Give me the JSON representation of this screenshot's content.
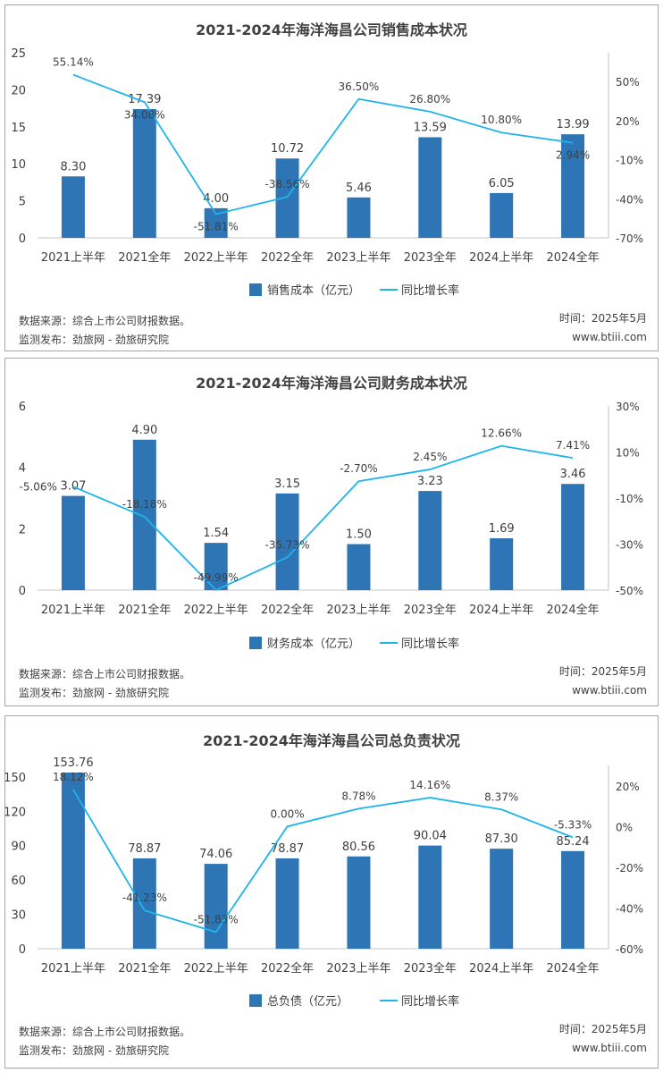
{
  "chart_data": [
    {
      "type": "bar+line",
      "title": "2021-2024年海洋海昌公司销售成本状况",
      "categories": [
        "2021上半年",
        "2021全年",
        "2022上半年",
        "2022全年",
        "2023上半年",
        "2023全年",
        "2024上半年",
        "2024全年"
      ],
      "series": [
        {
          "name": "销售成本（亿元）",
          "type": "bar",
          "axis": "left",
          "values": [
            8.3,
            17.39,
            4.0,
            10.72,
            5.46,
            13.59,
            6.05,
            13.99
          ],
          "labels": [
            "8.30",
            "17.39",
            "4.00",
            "10.72",
            "5.46",
            "13.59",
            "6.05",
            "13.99"
          ]
        },
        {
          "name": "同比增长率",
          "type": "line",
          "axis": "right",
          "values": [
            55.14,
            34.08,
            -51.81,
            -38.56,
            36.5,
            26.8,
            10.8,
            2.94
          ],
          "labels": [
            "55.14%",
            "34.08%",
            "-51.81%",
            "-38.56%",
            "36.50%",
            "26.80%",
            "10.80%",
            "2.94%"
          ]
        }
      ],
      "ylim": [
        0,
        25
      ],
      "yticks": [
        "0",
        "5",
        "10",
        "15",
        "20",
        "25"
      ],
      "ytick_values": [
        0,
        5,
        10,
        15,
        20,
        25
      ],
      "y2lim": [
        -70,
        72
      ],
      "y2ticks": [
        "-70%",
        "-40%",
        "-10%",
        "20%",
        "50%"
      ],
      "y2tick_values": [
        -70,
        -40,
        -10,
        20,
        50
      ],
      "grid": false,
      "legend": "bottom",
      "source": "数据来源：综合上市公司财报数据。",
      "publisher": "监测发布：劲旅网 - 劲旅研究院",
      "date": "时间：2025年5月",
      "site": "www.btiii.com"
    },
    {
      "type": "bar+line",
      "title": "2021-2024年海洋海昌公司财务成本状况",
      "categories": [
        "2021上半年",
        "2021全年",
        "2022上半年",
        "2022全年",
        "2023上半年",
        "2023全年",
        "2024上半年",
        "2024全年"
      ],
      "series": [
        {
          "name": "财务成本（亿元）",
          "type": "bar",
          "axis": "left",
          "values": [
            3.07,
            4.9,
            1.54,
            3.15,
            1.5,
            3.23,
            1.69,
            3.46
          ],
          "labels": [
            "3.07",
            "4.90",
            "1.54",
            "3.15",
            "1.50",
            "3.23",
            "1.69",
            "3.46"
          ]
        },
        {
          "name": "同比增长率",
          "type": "line",
          "axis": "right",
          "values": [
            -5.06,
            -18.18,
            -49.99,
            -35.73,
            -2.7,
            2.45,
            12.66,
            7.41
          ],
          "labels": [
            "-5.06%",
            "-18.18%",
            "-49.99%",
            "-35.73%",
            "-2.70%",
            "2.45%",
            "12.66%",
            "7.41%"
          ]
        }
      ],
      "ylim": [
        0,
        6
      ],
      "yticks": [
        "0",
        "2",
        "4",
        "6"
      ],
      "ytick_values": [
        0,
        2,
        4,
        6
      ],
      "y2lim": [
        -50,
        30
      ],
      "y2ticks": [
        "-50%",
        "-30%",
        "-10%",
        "10%",
        "30%"
      ],
      "y2tick_values": [
        -50,
        -30,
        -10,
        10,
        30
      ],
      "grid": false,
      "legend": "bottom",
      "source": "数据来源：综合上市公司财报数据。",
      "publisher": "监测发布：劲旅网 - 劲旅研究院",
      "date": "时间：2025年5月",
      "site": "www.btiii.com"
    },
    {
      "type": "bar+line",
      "title": "2021-2024年海洋海昌公司总负责状况",
      "categories": [
        "2021上半年",
        "2021全年",
        "2022上半年",
        "2022全年",
        "2023上半年",
        "2023全年",
        "2024上半年",
        "2024全年"
      ],
      "series": [
        {
          "name": "总负债（亿元）",
          "type": "bar",
          "axis": "left",
          "values": [
            153.76,
            78.87,
            74.06,
            78.87,
            80.56,
            90.04,
            87.3,
            85.24
          ],
          "labels": [
            "153.76",
            "78.87",
            "74.06",
            "78.87",
            "80.56",
            "90.04",
            "87.30",
            "85.24"
          ]
        },
        {
          "name": "同比增长率",
          "type": "line",
          "axis": "right",
          "values": [
            18.12,
            -41.23,
            -51.83,
            0.0,
            8.78,
            14.16,
            8.37,
            -5.33
          ],
          "labels": [
            "18.12%",
            "-41.23%",
            "-51.83%",
            "0.00%",
            "8.78%",
            "14.16%",
            "8.37%",
            "-5.33%"
          ]
        }
      ],
      "ylim": [
        0,
        160
      ],
      "yticks": [
        "0",
        "30",
        "60",
        "90",
        "120",
        "150"
      ],
      "ytick_values": [
        0,
        30,
        60,
        90,
        120,
        150
      ],
      "y2lim": [
        -60,
        30
      ],
      "y2ticks": [
        "-60%",
        "-40%",
        "-20%",
        "0%",
        "20%"
      ],
      "y2tick_values": [
        -60,
        -40,
        -20,
        0,
        20
      ],
      "grid": false,
      "legend": "bottom",
      "source": "数据来源：综合上市公司财报数据。",
      "publisher": "监测发布：劲旅网 - 劲旅研究院",
      "date": "时间：2025年5月",
      "site": "www.btiii.com"
    }
  ],
  "colors": {
    "bar": "#2e75b6",
    "line": "#1fb4ea",
    "text": "#404040",
    "axis": "#d9d9d9"
  }
}
